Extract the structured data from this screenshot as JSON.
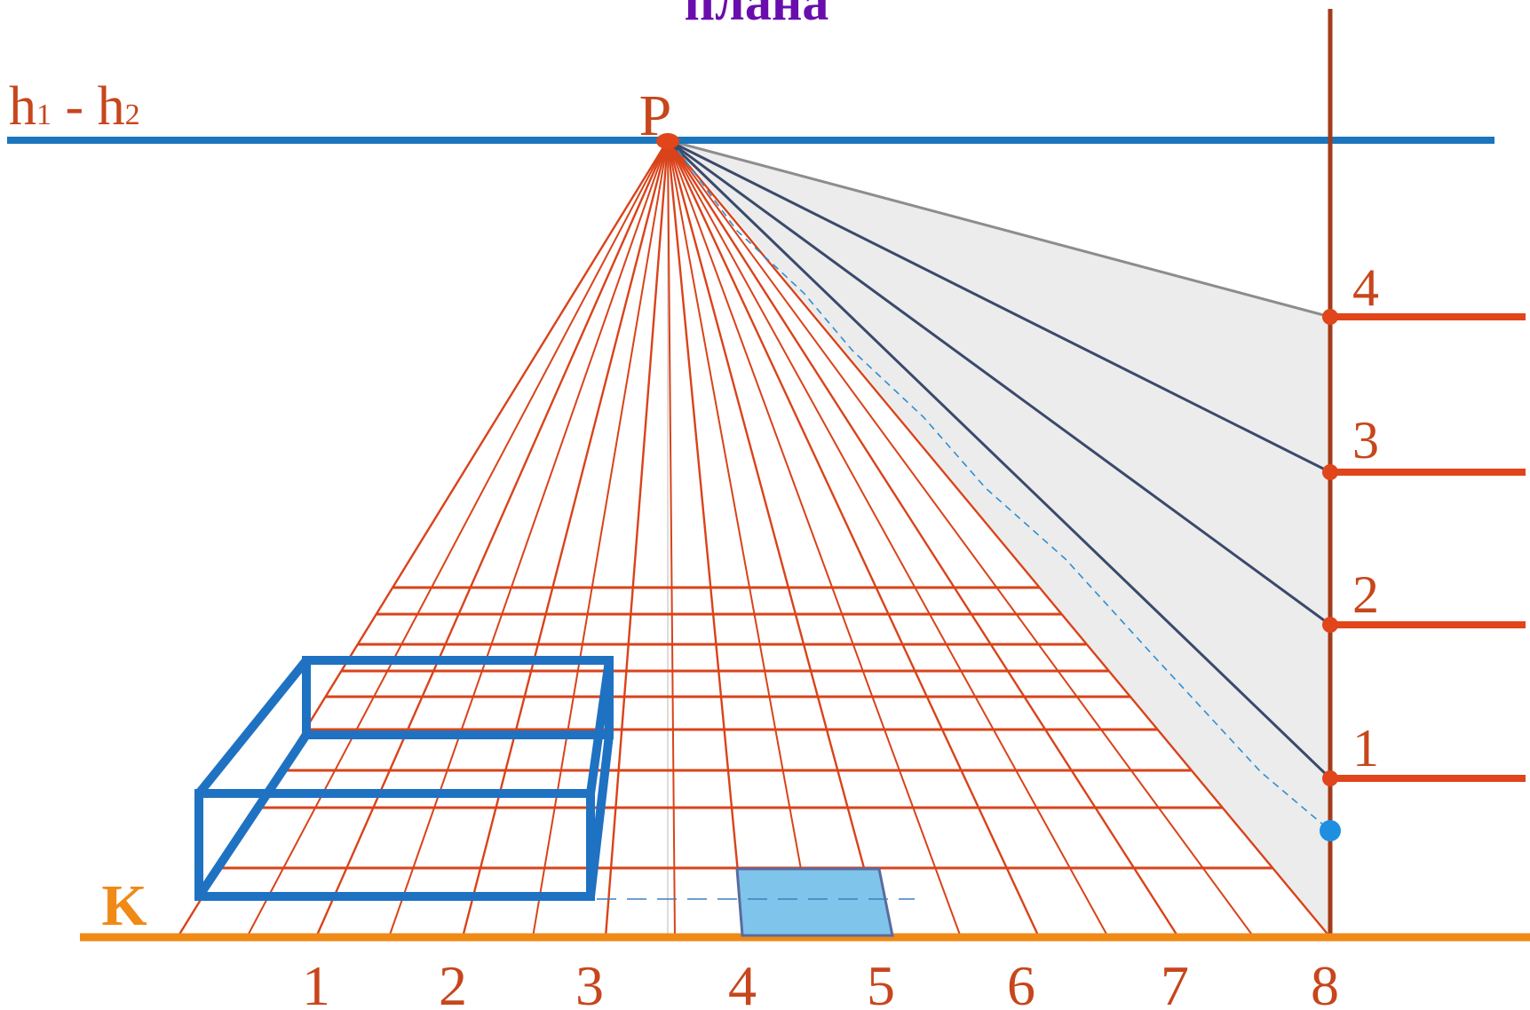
{
  "title_fragment": "плана",
  "horizon_label": {
    "h": "h",
    "sub1": "1",
    "dash": " - ",
    "h2": "h",
    "sub2": "2"
  },
  "vanishing_point_label": "P",
  "ground_line_label": "K",
  "ground_numbers": [
    "1",
    "2",
    "3",
    "4",
    "5",
    "6",
    "7",
    "8"
  ],
  "height_scale_numbers": [
    "1",
    "2",
    "3",
    "4"
  ],
  "colors": {
    "title": "#6a0dad",
    "horizon_line": "#1b75bc",
    "ground_line": "#ef8a17",
    "grid_lines": "#d9431a",
    "ray_lines": "#3a4a6b",
    "vertical_scale": "#a23b1a",
    "label_text": "#c7461c",
    "box_outline": "#1f72c2",
    "filled_square": "#7fc4ea",
    "shaded_area": "#e9e9e9"
  }
}
